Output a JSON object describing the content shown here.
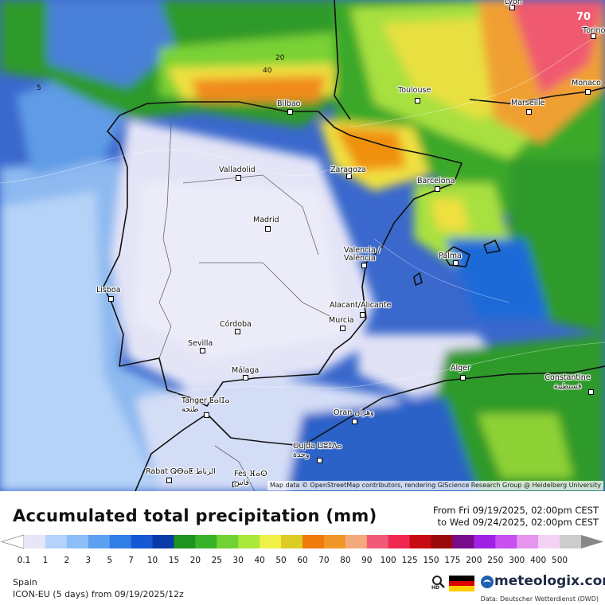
{
  "map": {
    "attribution": "Map data © OpenStreetMap contributors, rendering GIScience Research Group @ Heidelberg University",
    "cities": [
      {
        "name": "Lyon"
      },
      {
        "name": "Torino"
      },
      {
        "name": "Monaco"
      },
      {
        "name": "Marseille"
      },
      {
        "name": "Toulouse"
      },
      {
        "name": "Bilbao"
      },
      {
        "name": "Valladolid"
      },
      {
        "name": "Zaragoza"
      },
      {
        "name": "Barcelona"
      },
      {
        "name": "Madrid"
      },
      {
        "name": "Valencia / València"
      },
      {
        "name": "Palma"
      },
      {
        "name": "Lisboa"
      },
      {
        "name": "Alacant/Alicante"
      },
      {
        "name": "Murcia"
      },
      {
        "name": "Córdoba"
      },
      {
        "name": "Sevilla"
      },
      {
        "name": "Málaga"
      },
      {
        "name": "Alger"
      },
      {
        "name": "Constantine قسنطينة"
      },
      {
        "name": "Tanger ⵟⴰⵏⵊⴰ طنجة"
      },
      {
        "name": "Oran وهران"
      },
      {
        "name": "Oujda ⵡⵓⵊⴷⴰ وجدة"
      },
      {
        "name": "Rabat ⵕⴱⴰⵟ الرباط"
      },
      {
        "name": "Fès ⴼⴰⵙ فاس"
      }
    ],
    "contour_labels": [
      "70",
      "40",
      "20",
      "5"
    ]
  },
  "header": {
    "title": "Accumulated total precipitation (mm)",
    "from": "From Fri 09/19/2025, 02:00pm CEST",
    "to": "to Wed 09/24/2025, 02:00pm CEST"
  },
  "legend": {
    "labels": [
      "0.1",
      "1",
      "2",
      "3",
      "5",
      "7",
      "10",
      "15",
      "20",
      "25",
      "30",
      "40",
      "50",
      "60",
      "70",
      "80",
      "90",
      "100",
      "125",
      "150",
      "175",
      "200",
      "250",
      "300",
      "400",
      "500"
    ],
    "colors": [
      "#e6e6f8",
      "#b4d2fa",
      "#8cbef8",
      "#5ea0f0",
      "#2f7ee6",
      "#1458d6",
      "#0a3aa8",
      "#1e9420",
      "#38b428",
      "#72d234",
      "#aae83c",
      "#f0f046",
      "#dccc24",
      "#f07a0a",
      "#f09628",
      "#f5aa7c",
      "#f05a78",
      "#f02850",
      "#c80a14",
      "#9a0a0a",
      "#780a8c",
      "#a020e6",
      "#c850f0",
      "#e696f0",
      "#f5d2f5",
      "#cccccc"
    ]
  },
  "footer": {
    "region": "Spain",
    "model": "ICON-EU (5 days) from 09/19/2025/12z",
    "brand": "meteologix.com",
    "source": "Data: Deutscher Wetterdienst (DWD)",
    "hd": "HD"
  }
}
